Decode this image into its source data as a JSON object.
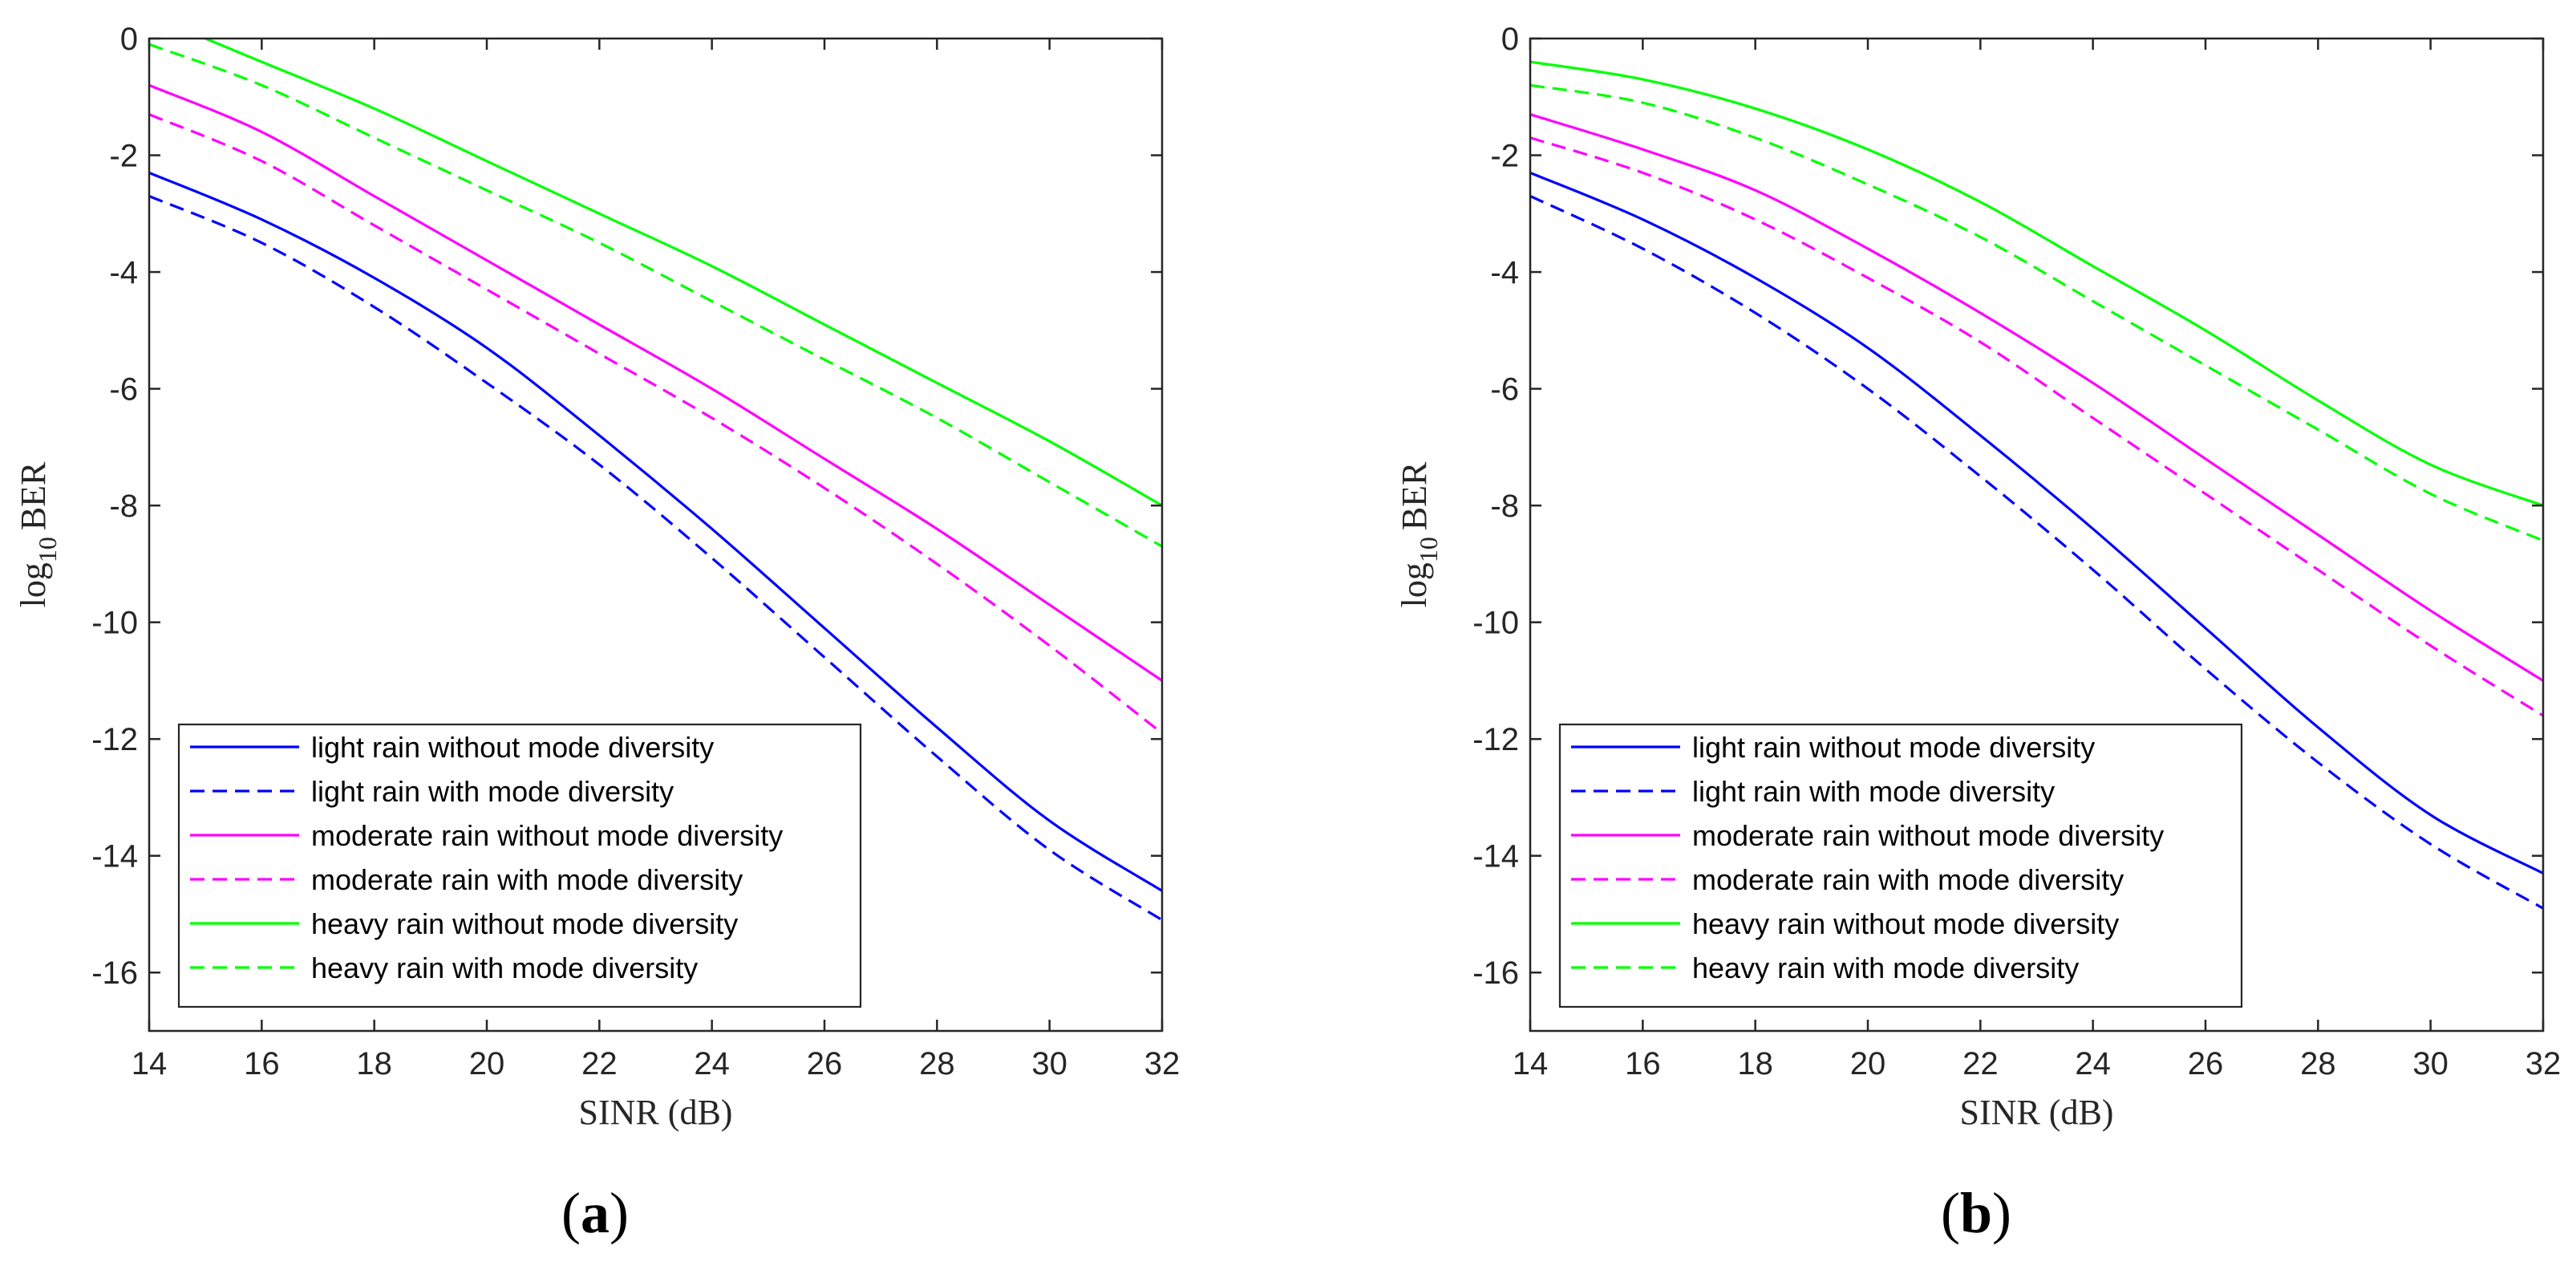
{
  "chart_data": [
    {
      "type": "line",
      "panel_label": "(a)",
      "xlabel": "SINR (dB)",
      "ylabel_prefix": "log",
      "ylabel_subscript": "10",
      "ylabel_suffix": "BER",
      "xlim": [
        14,
        32
      ],
      "ylim": [
        -17,
        0
      ],
      "xticks": [
        14,
        16,
        18,
        20,
        22,
        24,
        26,
        28,
        30,
        32
      ],
      "yticks": [
        0,
        -2,
        -4,
        -6,
        -8,
        -10,
        -12,
        -14,
        -16
      ],
      "legend_location": "bottom-left",
      "series": [
        {
          "name": "light rain without mode diversity",
          "color": "#0000ff",
          "dash": "solid",
          "x": [
            14,
            16,
            18,
            20,
            22,
            24,
            26,
            28,
            30,
            32
          ],
          "y": [
            -2.3,
            -3.1,
            -4.1,
            -5.3,
            -6.8,
            -8.4,
            -10.1,
            -11.8,
            -13.4,
            -14.6
          ]
        },
        {
          "name": "light rain with mode diversity",
          "color": "#0000ff",
          "dash": "dashed",
          "x": [
            14,
            16,
            18,
            20,
            22,
            24,
            26,
            28,
            30,
            32
          ],
          "y": [
            -2.7,
            -3.5,
            -4.6,
            -5.9,
            -7.3,
            -8.9,
            -10.6,
            -12.3,
            -13.9,
            -15.1
          ]
        },
        {
          "name": "moderate rain without mode diversity",
          "color": "#ff00ff",
          "dash": "solid",
          "x": [
            14,
            16,
            18,
            20,
            22,
            24,
            26,
            28,
            30,
            32
          ],
          "y": [
            -0.8,
            -1.6,
            -2.7,
            -3.8,
            -4.9,
            -6.0,
            -7.2,
            -8.4,
            -9.7,
            -11.0
          ]
        },
        {
          "name": "moderate rain with mode diversity",
          "color": "#ff00ff",
          "dash": "dashed",
          "x": [
            14,
            16,
            18,
            20,
            22,
            24,
            26,
            28,
            30,
            32
          ],
          "y": [
            -1.3,
            -2.1,
            -3.2,
            -4.3,
            -5.4,
            -6.5,
            -7.7,
            -9.0,
            -10.4,
            -11.9
          ]
        },
        {
          "name": "heavy rain without mode diversity",
          "color": "#00ff00",
          "dash": "solid",
          "x": [
            15,
            16,
            18,
            20,
            22,
            24,
            26,
            28,
            30,
            32
          ],
          "y": [
            0.0,
            -0.4,
            -1.2,
            -2.1,
            -3.0,
            -3.9,
            -4.9,
            -5.9,
            -6.9,
            -8.0
          ]
        },
        {
          "name": "heavy rain with mode diversity",
          "color": "#00ff00",
          "dash": "dashed",
          "x": [
            14,
            16,
            18,
            20,
            22,
            24,
            26,
            28,
            30,
            32
          ],
          "y": [
            -0.1,
            -0.8,
            -1.7,
            -2.6,
            -3.5,
            -4.5,
            -5.5,
            -6.5,
            -7.6,
            -8.7
          ]
        }
      ]
    },
    {
      "type": "line",
      "panel_label": "(b)",
      "xlabel": "SINR (dB)",
      "ylabel_prefix": "log",
      "ylabel_subscript": "10",
      "ylabel_suffix": "BER",
      "xlim": [
        14,
        32
      ],
      "ylim": [
        -17,
        0
      ],
      "xticks": [
        14,
        16,
        18,
        20,
        22,
        24,
        26,
        28,
        30,
        32
      ],
      "yticks": [
        0,
        -2,
        -4,
        -6,
        -8,
        -10,
        -12,
        -14,
        -16
      ],
      "legend_location": "bottom-left",
      "series": [
        {
          "name": "light rain without mode diversity",
          "color": "#0000ff",
          "dash": "solid",
          "x": [
            14,
            16,
            18,
            20,
            22,
            24,
            26,
            28,
            30,
            32
          ],
          "y": [
            -2.3,
            -3.1,
            -4.1,
            -5.3,
            -6.8,
            -8.4,
            -10.1,
            -11.8,
            -13.3,
            -14.3
          ]
        },
        {
          "name": "light rain with mode diversity",
          "color": "#0000ff",
          "dash": "dashed",
          "x": [
            14,
            16,
            18,
            20,
            22,
            24,
            26,
            28,
            30,
            32
          ],
          "y": [
            -2.7,
            -3.6,
            -4.7,
            -6.0,
            -7.5,
            -9.1,
            -10.8,
            -12.4,
            -13.8,
            -14.9
          ]
        },
        {
          "name": "moderate rain without mode diversity",
          "color": "#ff00ff",
          "dash": "solid",
          "x": [
            14,
            16,
            18,
            20,
            22,
            24,
            26,
            28,
            30,
            32
          ],
          "y": [
            -1.3,
            -1.9,
            -2.6,
            -3.6,
            -4.7,
            -5.9,
            -7.2,
            -8.5,
            -9.8,
            -11.0
          ]
        },
        {
          "name": "moderate rain with mode diversity",
          "color": "#ff00ff",
          "dash": "dashed",
          "x": [
            14,
            16,
            18,
            20,
            22,
            24,
            26,
            28,
            30,
            32
          ],
          "y": [
            -1.7,
            -2.3,
            -3.1,
            -4.1,
            -5.2,
            -6.5,
            -7.8,
            -9.1,
            -10.4,
            -11.6
          ]
        },
        {
          "name": "heavy rain without mode diversity",
          "color": "#00ff00",
          "dash": "solid",
          "x": [
            14,
            16,
            18,
            20,
            22,
            24,
            26,
            28,
            30,
            32
          ],
          "y": [
            -0.4,
            -0.7,
            -1.2,
            -1.9,
            -2.8,
            -3.9,
            -5.0,
            -6.2,
            -7.3,
            -8.0
          ]
        },
        {
          "name": "heavy rain with mode diversity",
          "color": "#00ff00",
          "dash": "dashed",
          "x": [
            14,
            16,
            18,
            20,
            22,
            24,
            26,
            28,
            30,
            32
          ],
          "y": [
            -0.8,
            -1.1,
            -1.7,
            -2.5,
            -3.4,
            -4.5,
            -5.6,
            -6.7,
            -7.8,
            -8.6
          ]
        }
      ]
    }
  ]
}
